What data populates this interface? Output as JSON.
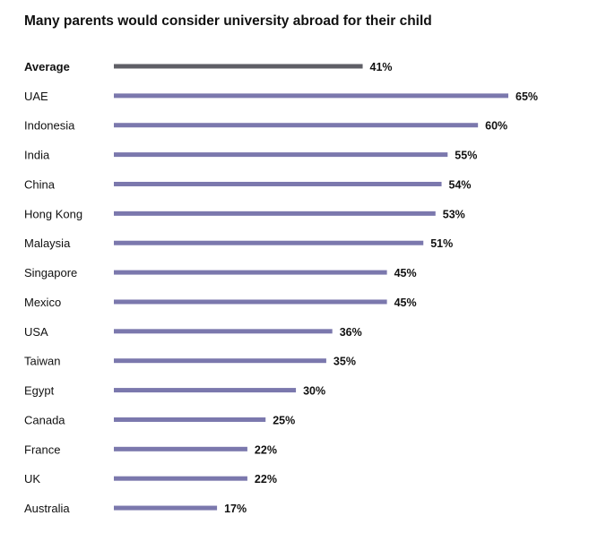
{
  "chart_data": {
    "type": "bar",
    "orientation": "horizontal",
    "title": "Many parents would consider university abroad for their child",
    "xlabel": "",
    "ylabel": "",
    "xlim": [
      0,
      65
    ],
    "grid": false,
    "categories": [
      "Average",
      "UAE",
      "Indonesia",
      "India",
      "China",
      "Hong Kong",
      "Malaysia",
      "Singapore",
      "Mexico",
      "USA",
      "Taiwan",
      "Egypt",
      "Canada",
      "France",
      "UK",
      "Australia"
    ],
    "values": [
      41,
      65,
      60,
      55,
      54,
      53,
      51,
      45,
      45,
      36,
      35,
      30,
      25,
      22,
      22,
      17
    ],
    "value_labels": [
      "41%",
      "65%",
      "60%",
      "55%",
      "54%",
      "53%",
      "51%",
      "45%",
      "45%",
      "36%",
      "35%",
      "30%",
      "25%",
      "22%",
      "22%",
      "17%"
    ],
    "colors": {
      "average": "#5f5f66",
      "country": "#7b78ad"
    }
  }
}
